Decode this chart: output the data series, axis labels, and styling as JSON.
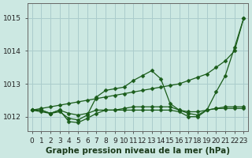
{
  "background_color": "#cce8e2",
  "grid_color": "#aacccc",
  "line_color": "#1a5c1a",
  "title": "Graphe pression niveau de la mer (hPa)",
  "yticks": [
    1012,
    1013,
    1014,
    1015
  ],
  "ylim": [
    1011.55,
    1015.45
  ],
  "xlim": [
    -0.5,
    23.5
  ],
  "hours": [
    0,
    1,
    2,
    3,
    4,
    5,
    6,
    7,
    8,
    9,
    10,
    11,
    12,
    13,
    14,
    15,
    16,
    17,
    18,
    19,
    20,
    21,
    22,
    23
  ],
  "line1_straight": [
    1012.2,
    1012.25,
    1012.3,
    1012.35,
    1012.4,
    1012.45,
    1012.5,
    1012.55,
    1012.6,
    1012.65,
    1012.7,
    1012.75,
    1012.8,
    1012.85,
    1012.9,
    1012.95,
    1013.0,
    1013.1,
    1013.2,
    1013.3,
    1013.5,
    1013.7,
    1014.0,
    1015.0
  ],
  "line2_peaked": [
    1012.2,
    1012.2,
    1012.1,
    1012.15,
    1011.95,
    1011.9,
    1012.05,
    1012.6,
    1012.8,
    1012.85,
    1012.9,
    1013.1,
    1013.25,
    1013.4,
    1013.15,
    1012.4,
    1012.2,
    1012.15,
    1012.15,
    1012.2,
    1012.75,
    1013.25,
    1014.1,
    1015.0
  ],
  "line3_dip": [
    1012.2,
    1012.15,
    1012.1,
    1012.2,
    1011.85,
    1011.82,
    1011.95,
    1012.1,
    1012.2,
    1012.2,
    1012.2,
    1012.2,
    1012.2,
    1012.2,
    1012.2,
    1012.2,
    1012.15,
    1012.0,
    1012.0,
    1012.2,
    1012.25,
    1012.25,
    1012.25,
    1012.25
  ],
  "line4_flat": [
    1012.2,
    1012.2,
    1012.1,
    1012.2,
    1012.1,
    1012.05,
    1012.1,
    1012.2,
    1012.2,
    1012.2,
    1012.25,
    1012.3,
    1012.3,
    1012.3,
    1012.3,
    1012.3,
    1012.2,
    1012.1,
    1012.05,
    1012.2,
    1012.25,
    1012.3,
    1012.3,
    1012.3
  ],
  "ticklabel_fontsize": 6.5,
  "title_fontsize": 7.5
}
